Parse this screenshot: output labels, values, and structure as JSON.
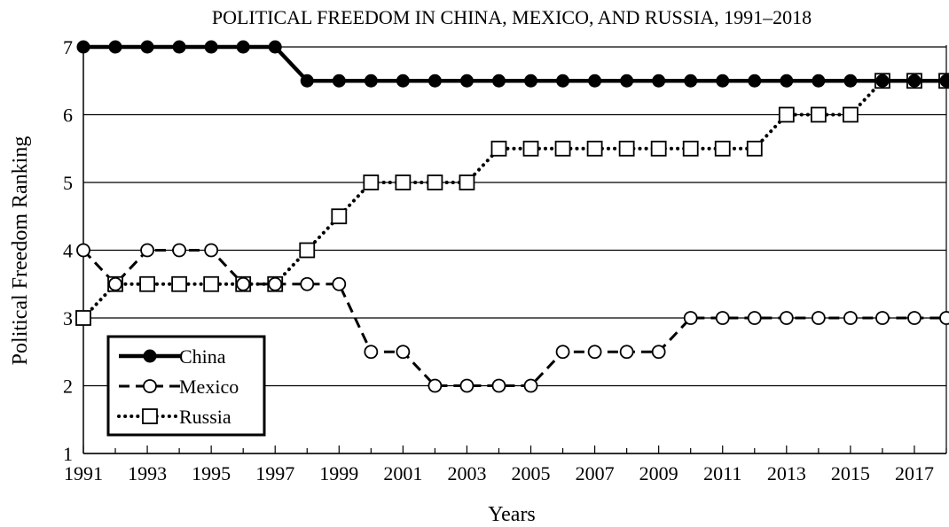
{
  "chart_data": {
    "type": "line",
    "title": "POLITICAL FREEDOM IN CHINA, MEXICO, AND RUSSIA, 1991–2018",
    "xlabel": "Years",
    "ylabel": "Political Freedom Ranking",
    "x": [
      1991,
      1992,
      1993,
      1994,
      1995,
      1996,
      1997,
      1998,
      1999,
      2000,
      2001,
      2002,
      2003,
      2004,
      2005,
      2006,
      2007,
      2008,
      2009,
      2010,
      2011,
      2012,
      2013,
      2014,
      2015,
      2016,
      2017,
      2018
    ],
    "xticks": [
      "1991",
      "1993",
      "1995",
      "1997",
      "1999",
      "2001",
      "2003",
      "2005",
      "2007",
      "2009",
      "2011",
      "2013",
      "2015",
      "2017"
    ],
    "xlim": [
      1991,
      2018
    ],
    "ylim": [
      1,
      7
    ],
    "yticks": [
      "1",
      "2",
      "3",
      "4",
      "5",
      "6",
      "7"
    ],
    "grid": "horizontal",
    "legend_position": "bottom-left",
    "series": [
      {
        "name": "China",
        "line": "solid",
        "marker": "filled-circle",
        "values": [
          7,
          7,
          7,
          7,
          7,
          7,
          7,
          6.5,
          6.5,
          6.5,
          6.5,
          6.5,
          6.5,
          6.5,
          6.5,
          6.5,
          6.5,
          6.5,
          6.5,
          6.5,
          6.5,
          6.5,
          6.5,
          6.5,
          6.5,
          6.5,
          6.5,
          6.5
        ]
      },
      {
        "name": "Mexico",
        "line": "dashed",
        "marker": "open-circle",
        "values": [
          4,
          3.5,
          4,
          4,
          4,
          3.5,
          3.5,
          3.5,
          3.5,
          2.5,
          2.5,
          2,
          2,
          2,
          2,
          2.5,
          2.5,
          2.5,
          2.5,
          3,
          3,
          3,
          3,
          3,
          3,
          3,
          3,
          3
        ]
      },
      {
        "name": "Russia",
        "line": "dotted",
        "marker": "open-square",
        "values": [
          3,
          3.5,
          3.5,
          3.5,
          3.5,
          3.5,
          3.5,
          4,
          4.5,
          5,
          5,
          5,
          5,
          5.5,
          5.5,
          5.5,
          5.5,
          5.5,
          5.5,
          5.5,
          5.5,
          5.5,
          6,
          6,
          6,
          6.5,
          6.5,
          6.5
        ]
      }
    ]
  }
}
